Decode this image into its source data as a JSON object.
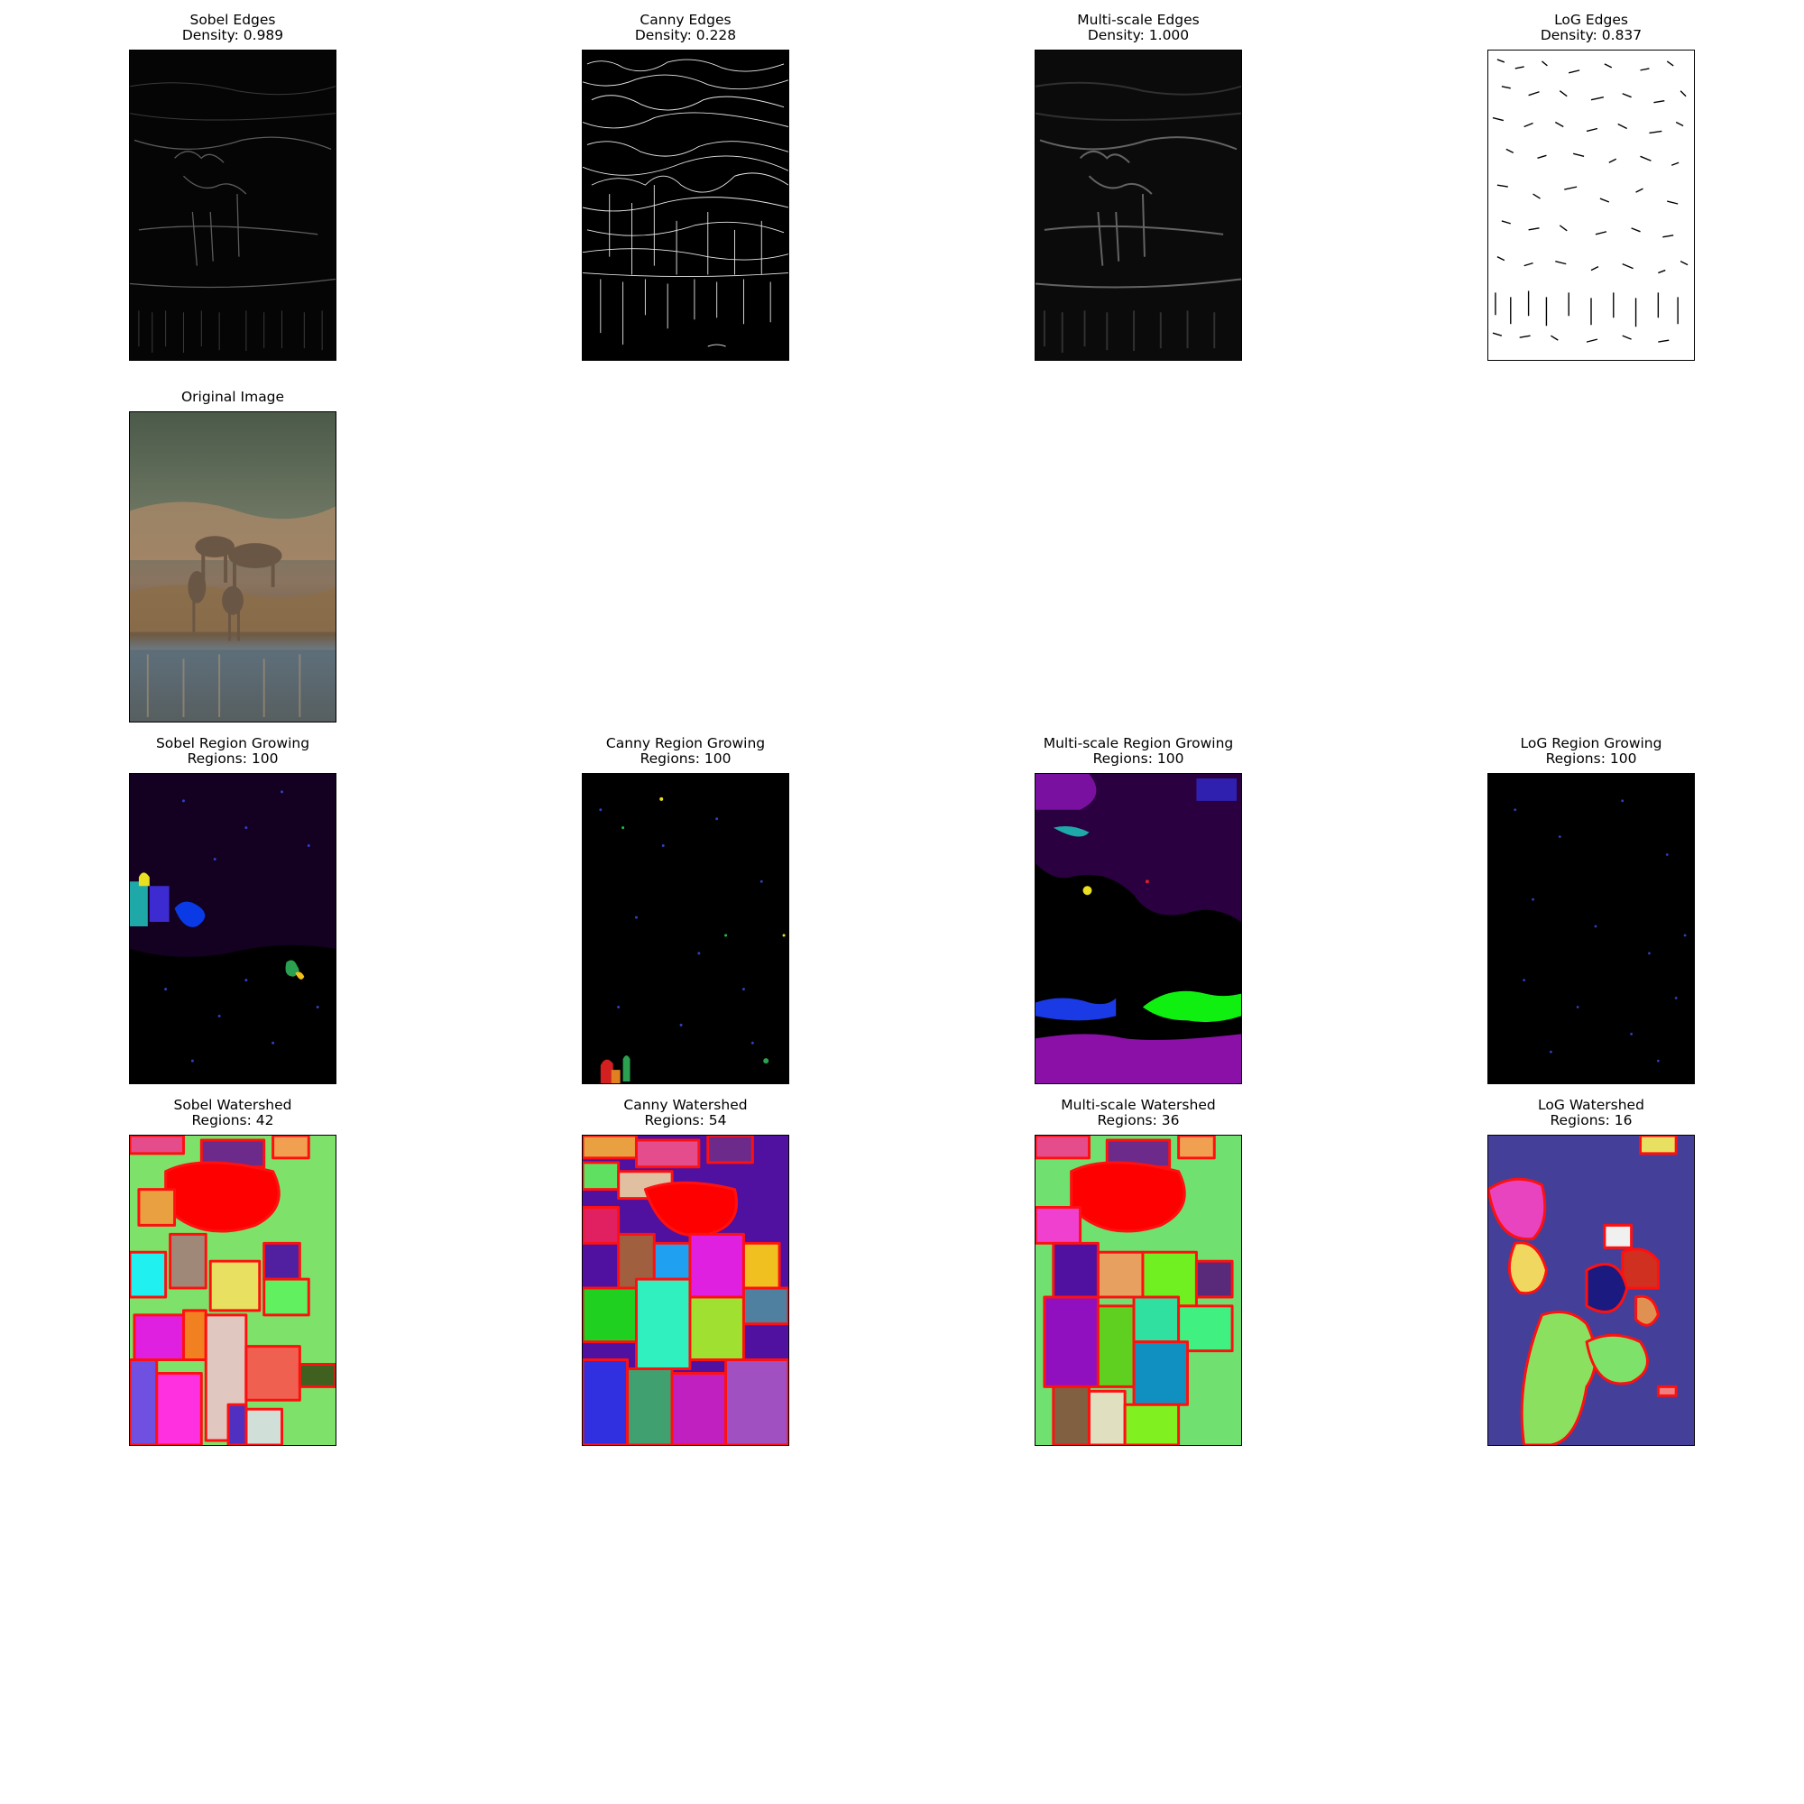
{
  "panels": {
    "sobel_edges": {
      "title": "Sobel Edges",
      "subtitle": "Density: 0.989"
    },
    "canny_edges": {
      "title": "Canny Edges",
      "subtitle": "Density: 0.228"
    },
    "multiscale_edges": {
      "title": "Multi-scale Edges",
      "subtitle": "Density: 1.000"
    },
    "log_edges": {
      "title": "LoG Edges",
      "subtitle": "Density: 0.837"
    },
    "original": {
      "title": "Original Image"
    },
    "sobel_region": {
      "title": "Sobel Region Growing",
      "subtitle": "Regions: 100"
    },
    "canny_region": {
      "title": "Canny Region Growing",
      "subtitle": "Regions: 100"
    },
    "multiscale_region": {
      "title": "Multi-scale Region Growing",
      "subtitle": "Regions: 100"
    },
    "log_region": {
      "title": "LoG Region Growing",
      "subtitle": "Regions: 100"
    },
    "sobel_watershed": {
      "title": "Sobel Watershed",
      "subtitle": "Regions: 42"
    },
    "canny_watershed": {
      "title": "Canny Watershed",
      "subtitle": "Regions: 54"
    },
    "multiscale_watershed": {
      "title": "Multi-scale Watershed",
      "subtitle": "Regions: 36"
    },
    "log_watershed": {
      "title": "LoG Watershed",
      "subtitle": "Regions: 16"
    }
  },
  "colors": {
    "boundary": "#ff0000",
    "edge_background": "#000000",
    "log_edge_background": "#ffffff",
    "log_watershed_background": "#44409a",
    "watershed_background": "#7ee26a"
  }
}
